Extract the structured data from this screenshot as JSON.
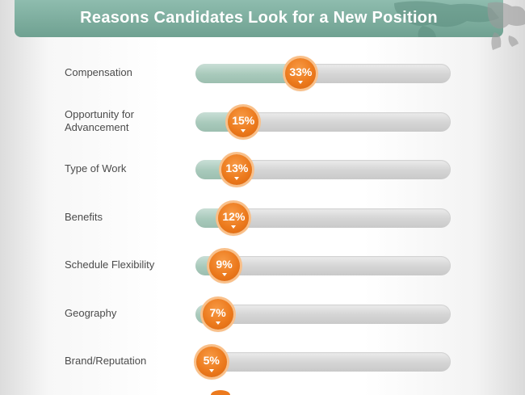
{
  "header": {
    "title": "Reasons Candidates Look for a New Position"
  },
  "colors": {
    "banner": "#7aab9b",
    "badge": "#ec7a1d",
    "fill": "#a8c9bb",
    "track": "#d6d6d6",
    "label": "#4b4b4b"
  },
  "chart_data": {
    "type": "bar",
    "title": "Reasons Candidates Look for a New Position",
    "categories": [
      "Compensation",
      "Opportunity for Advancement",
      "Type of Work",
      "Benefits",
      "Schedule Flexibility",
      "Geography",
      "Brand/Reputation"
    ],
    "values": [
      33,
      15,
      13,
      12,
      9,
      7,
      5
    ],
    "value_labels": [
      "33%",
      "15%",
      "13%",
      "12%",
      "9%",
      "7%",
      "5%"
    ],
    "unit": "%",
    "xlim": [
      0,
      80
    ],
    "orientation": "horizontal",
    "grid": false,
    "legend": "none"
  }
}
